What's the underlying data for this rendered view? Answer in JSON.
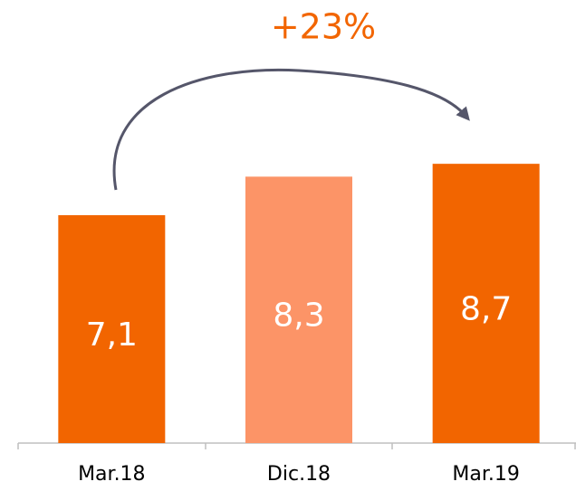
{
  "chart_data": {
    "type": "bar",
    "annotation": "+23%",
    "categories": [
      "Mar.18",
      "Dic.18",
      "Mar.19"
    ],
    "values": [
      7.1,
      8.3,
      8.7
    ],
    "value_labels": [
      "7,1",
      "8,3",
      "8,7"
    ],
    "colors": [
      "#f26500",
      "#fc9467",
      "#f26500"
    ]
  }
}
